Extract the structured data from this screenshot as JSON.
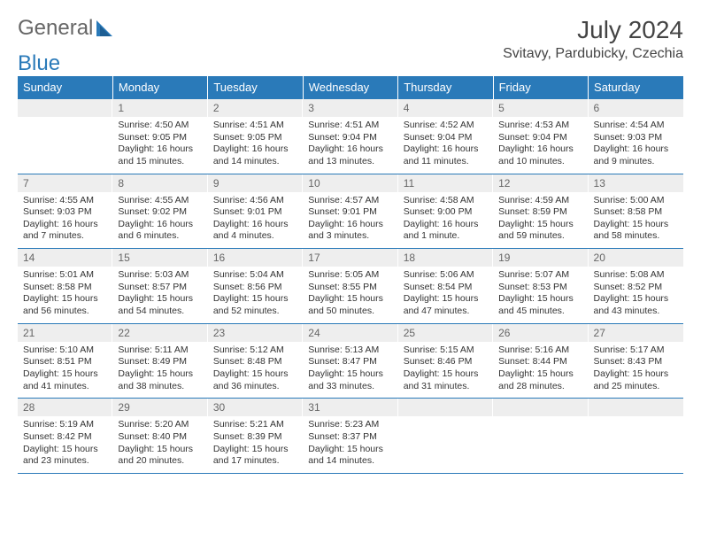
{
  "brand": {
    "part1": "General",
    "part2": "Blue"
  },
  "title": "July 2024",
  "location": "Svitavy, Pardubicky, Czechia",
  "colors": {
    "header_bg": "#2a7ab9",
    "header_text": "#ffffff",
    "daynum_bg": "#eeeeee",
    "border": "#2a7ab9",
    "text": "#333333"
  },
  "weekdays": [
    "Sunday",
    "Monday",
    "Tuesday",
    "Wednesday",
    "Thursday",
    "Friday",
    "Saturday"
  ],
  "start_offset": 1,
  "days": [
    {
      "n": 1,
      "sunrise": "4:50 AM",
      "sunset": "9:05 PM",
      "daylight": "16 hours and 15 minutes."
    },
    {
      "n": 2,
      "sunrise": "4:51 AM",
      "sunset": "9:05 PM",
      "daylight": "16 hours and 14 minutes."
    },
    {
      "n": 3,
      "sunrise": "4:51 AM",
      "sunset": "9:04 PM",
      "daylight": "16 hours and 13 minutes."
    },
    {
      "n": 4,
      "sunrise": "4:52 AM",
      "sunset": "9:04 PM",
      "daylight": "16 hours and 11 minutes."
    },
    {
      "n": 5,
      "sunrise": "4:53 AM",
      "sunset": "9:04 PM",
      "daylight": "16 hours and 10 minutes."
    },
    {
      "n": 6,
      "sunrise": "4:54 AM",
      "sunset": "9:03 PM",
      "daylight": "16 hours and 9 minutes."
    },
    {
      "n": 7,
      "sunrise": "4:55 AM",
      "sunset": "9:03 PM",
      "daylight": "16 hours and 7 minutes."
    },
    {
      "n": 8,
      "sunrise": "4:55 AM",
      "sunset": "9:02 PM",
      "daylight": "16 hours and 6 minutes."
    },
    {
      "n": 9,
      "sunrise": "4:56 AM",
      "sunset": "9:01 PM",
      "daylight": "16 hours and 4 minutes."
    },
    {
      "n": 10,
      "sunrise": "4:57 AM",
      "sunset": "9:01 PM",
      "daylight": "16 hours and 3 minutes."
    },
    {
      "n": 11,
      "sunrise": "4:58 AM",
      "sunset": "9:00 PM",
      "daylight": "16 hours and 1 minute."
    },
    {
      "n": 12,
      "sunrise": "4:59 AM",
      "sunset": "8:59 PM",
      "daylight": "15 hours and 59 minutes."
    },
    {
      "n": 13,
      "sunrise": "5:00 AM",
      "sunset": "8:58 PM",
      "daylight": "15 hours and 58 minutes."
    },
    {
      "n": 14,
      "sunrise": "5:01 AM",
      "sunset": "8:58 PM",
      "daylight": "15 hours and 56 minutes."
    },
    {
      "n": 15,
      "sunrise": "5:03 AM",
      "sunset": "8:57 PM",
      "daylight": "15 hours and 54 minutes."
    },
    {
      "n": 16,
      "sunrise": "5:04 AM",
      "sunset": "8:56 PM",
      "daylight": "15 hours and 52 minutes."
    },
    {
      "n": 17,
      "sunrise": "5:05 AM",
      "sunset": "8:55 PM",
      "daylight": "15 hours and 50 minutes."
    },
    {
      "n": 18,
      "sunrise": "5:06 AM",
      "sunset": "8:54 PM",
      "daylight": "15 hours and 47 minutes."
    },
    {
      "n": 19,
      "sunrise": "5:07 AM",
      "sunset": "8:53 PM",
      "daylight": "15 hours and 45 minutes."
    },
    {
      "n": 20,
      "sunrise": "5:08 AM",
      "sunset": "8:52 PM",
      "daylight": "15 hours and 43 minutes."
    },
    {
      "n": 21,
      "sunrise": "5:10 AM",
      "sunset": "8:51 PM",
      "daylight": "15 hours and 41 minutes."
    },
    {
      "n": 22,
      "sunrise": "5:11 AM",
      "sunset": "8:49 PM",
      "daylight": "15 hours and 38 minutes."
    },
    {
      "n": 23,
      "sunrise": "5:12 AM",
      "sunset": "8:48 PM",
      "daylight": "15 hours and 36 minutes."
    },
    {
      "n": 24,
      "sunrise": "5:13 AM",
      "sunset": "8:47 PM",
      "daylight": "15 hours and 33 minutes."
    },
    {
      "n": 25,
      "sunrise": "5:15 AM",
      "sunset": "8:46 PM",
      "daylight": "15 hours and 31 minutes."
    },
    {
      "n": 26,
      "sunrise": "5:16 AM",
      "sunset": "8:44 PM",
      "daylight": "15 hours and 28 minutes."
    },
    {
      "n": 27,
      "sunrise": "5:17 AM",
      "sunset": "8:43 PM",
      "daylight": "15 hours and 25 minutes."
    },
    {
      "n": 28,
      "sunrise": "5:19 AM",
      "sunset": "8:42 PM",
      "daylight": "15 hours and 23 minutes."
    },
    {
      "n": 29,
      "sunrise": "5:20 AM",
      "sunset": "8:40 PM",
      "daylight": "15 hours and 20 minutes."
    },
    {
      "n": 30,
      "sunrise": "5:21 AM",
      "sunset": "8:39 PM",
      "daylight": "15 hours and 17 minutes."
    },
    {
      "n": 31,
      "sunrise": "5:23 AM",
      "sunset": "8:37 PM",
      "daylight": "15 hours and 14 minutes."
    }
  ]
}
